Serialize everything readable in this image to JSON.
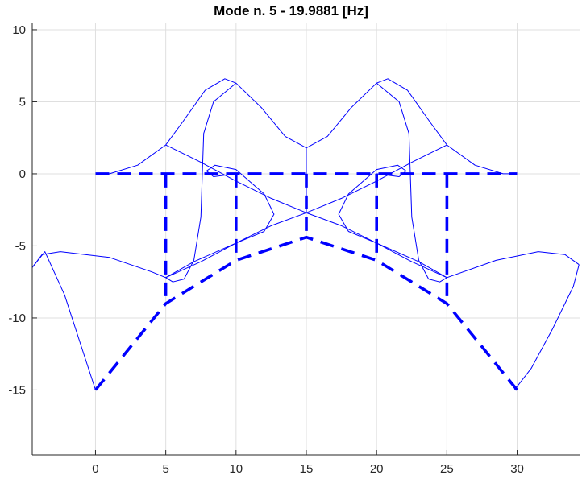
{
  "chart_data": {
    "type": "line",
    "title": "Mode n. 5 - 19.9881 [Hz]",
    "xlabel": "",
    "ylabel": "",
    "xlim": [
      -4.5,
      34.5
    ],
    "ylim": [
      -19.5,
      10.5
    ],
    "x_ticks": [
      0,
      5,
      10,
      15,
      20,
      25,
      30
    ],
    "y_ticks": [
      10,
      5,
      0,
      -5,
      -10,
      -15
    ],
    "grid": true,
    "colors": {
      "deformed": "#0000ff",
      "undeformed": "#0000ff",
      "grid": "#dfdfdf",
      "axis": "#262626"
    },
    "series": [
      {
        "style": "thin-solid",
        "description_key": "deformed-shape",
        "segments": [
          {
            "x": [
              -4.5,
              -3.6,
              -2.2,
              -0.8,
              0.0
            ],
            "y": [
              -6.5,
              -5.4,
              -8.4,
              -12.6,
              -15.0
            ]
          },
          {
            "x": [
              -4.5,
              -3.8,
              -2.5,
              1.0,
              4.0,
              5.0
            ],
            "y": [
              -6.5,
              -5.6,
              -5.4,
              -5.8,
              -6.8,
              -7.2
            ]
          },
          {
            "x": [
              0.0,
              1.0,
              3.0,
              5.0
            ],
            "y": [
              0.0,
              0.0,
              0.6,
              2.0
            ]
          },
          {
            "x": [
              5.0,
              6.2,
              7.8,
              9.2,
              10.0
            ],
            "y": [
              2.0,
              3.6,
              5.8,
              6.6,
              6.3
            ]
          },
          {
            "x": [
              10.0,
              11.8,
              13.5,
              15.0
            ],
            "y": [
              6.3,
              4.6,
              2.6,
              1.8
            ]
          },
          {
            "x": [
              15.0,
              16.5,
              18.2,
              20.0
            ],
            "y": [
              1.8,
              2.6,
              4.6,
              6.3
            ]
          },
          {
            "x": [
              20.0,
              20.8,
              22.2,
              23.8,
              25.0
            ],
            "y": [
              6.3,
              6.6,
              5.8,
              3.6,
              2.0
            ]
          },
          {
            "x": [
              25.0,
              27.0,
              29.0,
              30.0
            ],
            "y": [
              2.0,
              0.6,
              0.0,
              0.0
            ]
          },
          {
            "x": [
              5.0,
              7.5,
              10.0,
              12.5,
              15.0
            ],
            "y": [
              2.0,
              0.8,
              -0.5,
              -1.7,
              -2.7
            ]
          },
          {
            "x": [
              15.0,
              17.5,
              20.0,
              22.5,
              25.0
            ],
            "y": [
              -2.7,
              -1.7,
              -0.5,
              0.8,
              2.0
            ]
          },
          {
            "x": [
              15.0,
              15.0
            ],
            "y": [
              1.8,
              -2.7
            ]
          },
          {
            "x": [
              10.0,
              8.4,
              7.7,
              7.6,
              7.5,
              7.0,
              6.3,
              5.5,
              5.0
            ],
            "y": [
              6.3,
              5.0,
              2.8,
              0.0,
              -3.0,
              -6.0,
              -7.3,
              -7.5,
              -7.2
            ]
          },
          {
            "x": [
              20.0,
              21.6,
              22.3,
              22.4,
              22.5,
              23.0,
              23.7,
              24.5,
              25.0
            ],
            "y": [
              6.3,
              5.0,
              2.8,
              0.0,
              -3.0,
              -6.0,
              -7.3,
              -7.5,
              -7.2
            ]
          },
          {
            "x": [
              5.0,
              7.5,
              10.0,
              12.5,
              15.0
            ],
            "y": [
              -7.2,
              -6.1,
              -4.8,
              -3.6,
              -2.7
            ]
          },
          {
            "x": [
              15.0,
              17.5,
              20.0,
              22.5,
              25.0
            ],
            "y": [
              -2.7,
              -3.6,
              -4.8,
              -6.1,
              -7.2
            ]
          },
          {
            "x": [
              10.0,
              8.4,
              7.9,
              8.5,
              10.0,
              12.0,
              12.7,
              12.0,
              10.0,
              7.0,
              5.0
            ],
            "y": [
              0.0,
              -0.2,
              0.2,
              0.6,
              0.3,
              -1.4,
              -2.8,
              -4.0,
              -4.8,
              -6.1,
              -7.2
            ]
          },
          {
            "x": [
              20.0,
              21.6,
              22.1,
              21.5,
              20.0,
              18.0,
              17.3,
              18.0,
              20.0,
              23.0,
              25.0
            ],
            "y": [
              0.0,
              -0.2,
              0.2,
              0.6,
              0.3,
              -1.4,
              -2.8,
              -4.0,
              -4.8,
              -6.1,
              -7.2
            ]
          },
          {
            "x": [
              25.0,
              28.5,
              31.5,
              33.4,
              34.4
            ],
            "y": [
              -7.2,
              -6.0,
              -5.4,
              -5.6,
              -6.3
            ]
          },
          {
            "x": [
              34.4,
              34.0,
              32.5,
              31.0,
              29.8
            ],
            "y": [
              -6.3,
              -7.8,
              -10.8,
              -13.5,
              -15.0
            ]
          }
        ]
      },
      {
        "style": "thick-dashed",
        "description_key": "undeformed-shape",
        "segments": [
          {
            "x": [
              0,
              30
            ],
            "y": [
              0,
              0
            ]
          },
          {
            "x": [
              5,
              5
            ],
            "y": [
              0,
              -9
            ]
          },
          {
            "x": [
              10,
              10
            ],
            "y": [
              0,
              -6
            ]
          },
          {
            "x": [
              15,
              15
            ],
            "y": [
              0,
              -4.4
            ]
          },
          {
            "x": [
              20,
              20
            ],
            "y": [
              0,
              -6
            ]
          },
          {
            "x": [
              25,
              25
            ],
            "y": [
              0,
              -9
            ]
          },
          {
            "x": [
              0,
              5,
              10,
              15,
              20,
              25,
              30
            ],
            "y": [
              -15,
              -9,
              -6,
              -4.4,
              -6,
              -9,
              -15
            ]
          }
        ]
      }
    ]
  }
}
